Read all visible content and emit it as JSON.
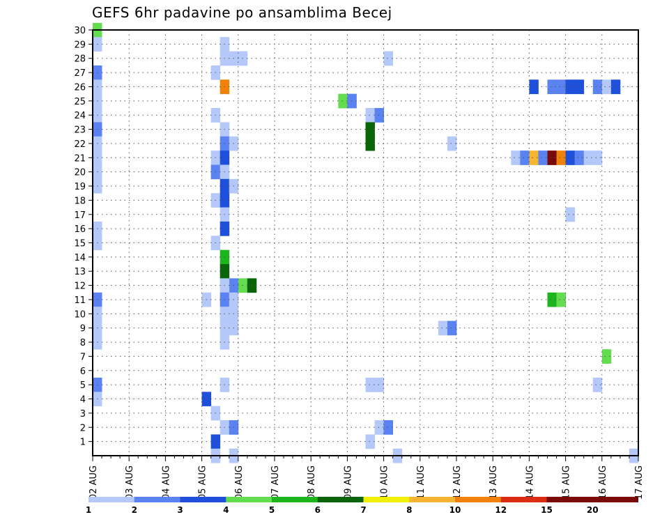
{
  "chart_data": {
    "type": "heatmap",
    "title": "GEFS 6hr padavine po ansamblima Becej",
    "xlabel": "",
    "ylabel": "",
    "x_ticks": [
      "02 AUG",
      "03 AUG",
      "04 AUG",
      "05 AUG",
      "06 AUG",
      "07 AUG",
      "08 AUG",
      "09 AUG",
      "10 AUG",
      "11 AUG",
      "12 AUG",
      "13 AUG",
      "14 AUG",
      "15 AUG",
      "16 AUG",
      "17 AUG"
    ],
    "y_ticks": [
      1,
      2,
      3,
      4,
      5,
      6,
      7,
      8,
      9,
      10,
      11,
      12,
      13,
      14,
      15,
      16,
      17,
      18,
      19,
      20,
      21,
      22,
      23,
      24,
      25,
      26,
      27,
      28,
      29,
      30
    ],
    "x_range_steps": [
      0,
      60
    ],
    "y_range_members": [
      0,
      30
    ],
    "grid": true,
    "legend_position": "bottom",
    "colorbar": {
      "labels": [
        "1",
        "2",
        "3",
        "4",
        "5",
        "6",
        "7",
        "8",
        "10",
        "12",
        "15",
        "20"
      ],
      "colors": [
        "#b4c8fa",
        "#5a82f0",
        "#1e50dc",
        "#64dc50",
        "#1eb41e",
        "#0a640a",
        "#f0f000",
        "#f5b432",
        "#f0820a",
        "#dc2d14",
        "#780a0a"
      ]
    },
    "cells_note_levels": "each cell: [member, step, level]; step 0 = 02 AUG 00z, 4 steps per day; level = colorbar bin index",
    "cells": [
      [
        30,
        0,
        4
      ],
      [
        29,
        0,
        1
      ],
      [
        27,
        0,
        2
      ],
      [
        26,
        0,
        1
      ],
      [
        25,
        0,
        1
      ],
      [
        24,
        0,
        1
      ],
      [
        23,
        0,
        2
      ],
      [
        22,
        0,
        1
      ],
      [
        21,
        0,
        1
      ],
      [
        20,
        0,
        1
      ],
      [
        19,
        0,
        1
      ],
      [
        16,
        0,
        1
      ],
      [
        15,
        0,
        1
      ],
      [
        11,
        0,
        2
      ],
      [
        10,
        0,
        1
      ],
      [
        9,
        0,
        1
      ],
      [
        8,
        0,
        1
      ],
      [
        5,
        0,
        2
      ],
      [
        4,
        0,
        1
      ],
      [
        11,
        12,
        1
      ],
      [
        12,
        14,
        1
      ],
      [
        12,
        15,
        2
      ],
      [
        12,
        16,
        4
      ],
      [
        12,
        17,
        6
      ],
      [
        4,
        12,
        3
      ],
      [
        3,
        13,
        1
      ],
      [
        1,
        13,
        3
      ],
      [
        0,
        13,
        1
      ],
      [
        27,
        13,
        1
      ],
      [
        24,
        13,
        1
      ],
      [
        21,
        13,
        1
      ],
      [
        20,
        13,
        2
      ],
      [
        18,
        13,
        1
      ],
      [
        15,
        13,
        1
      ],
      [
        29,
        14,
        1
      ],
      [
        28,
        14,
        1
      ],
      [
        26,
        14,
        9
      ],
      [
        23,
        14,
        1
      ],
      [
        22,
        14,
        2
      ],
      [
        21,
        14,
        3
      ],
      [
        20,
        14,
        1
      ],
      [
        19,
        14,
        3
      ],
      [
        18,
        14,
        3
      ],
      [
        17,
        14,
        1
      ],
      [
        16,
        14,
        3
      ],
      [
        14,
        14,
        5
      ],
      [
        13,
        14,
        6
      ],
      [
        12,
        14,
        1
      ],
      [
        11,
        14,
        2
      ],
      [
        10,
        14,
        1
      ],
      [
        9,
        14,
        1
      ],
      [
        8,
        14,
        1
      ],
      [
        5,
        14,
        1
      ],
      [
        2,
        14,
        1
      ],
      [
        28,
        15,
        1
      ],
      [
        22,
        15,
        1
      ],
      [
        19,
        15,
        1
      ],
      [
        11,
        15,
        1
      ],
      [
        10,
        15,
        1
      ],
      [
        9,
        15,
        1
      ],
      [
        2,
        15,
        2
      ],
      [
        0,
        15,
        1
      ],
      [
        28,
        16,
        1
      ],
      [
        25,
        27,
        4
      ],
      [
        25,
        28,
        2
      ],
      [
        24,
        30,
        1
      ],
      [
        24,
        31,
        2
      ],
      [
        23,
        30,
        6
      ],
      [
        22,
        30,
        6
      ],
      [
        5,
        30,
        1
      ],
      [
        5,
        31,
        1
      ],
      [
        2,
        31,
        1
      ],
      [
        2,
        32,
        2
      ],
      [
        1,
        30,
        1
      ],
      [
        28,
        32,
        1
      ],
      [
        0,
        33,
        1
      ],
      [
        22,
        39,
        1
      ],
      [
        9,
        38,
        1
      ],
      [
        9,
        39,
        2
      ],
      [
        26,
        48,
        3
      ],
      [
        26,
        50,
        2
      ],
      [
        26,
        51,
        2
      ],
      [
        26,
        52,
        3
      ],
      [
        26,
        53,
        3
      ],
      [
        26,
        55,
        2
      ],
      [
        26,
        56,
        1
      ],
      [
        26,
        57,
        3
      ],
      [
        21,
        46,
        1
      ],
      [
        21,
        47,
        2
      ],
      [
        21,
        48,
        8
      ],
      [
        21,
        49,
        2
      ],
      [
        21,
        50,
        11
      ],
      [
        21,
        51,
        9
      ],
      [
        21,
        52,
        3
      ],
      [
        21,
        53,
        2
      ],
      [
        21,
        54,
        1
      ],
      [
        21,
        55,
        1
      ],
      [
        17,
        52,
        1
      ],
      [
        11,
        50,
        5
      ],
      [
        11,
        51,
        4
      ],
      [
        7,
        56,
        4
      ],
      [
        5,
        55,
        1
      ],
      [
        0,
        59,
        1
      ]
    ]
  }
}
